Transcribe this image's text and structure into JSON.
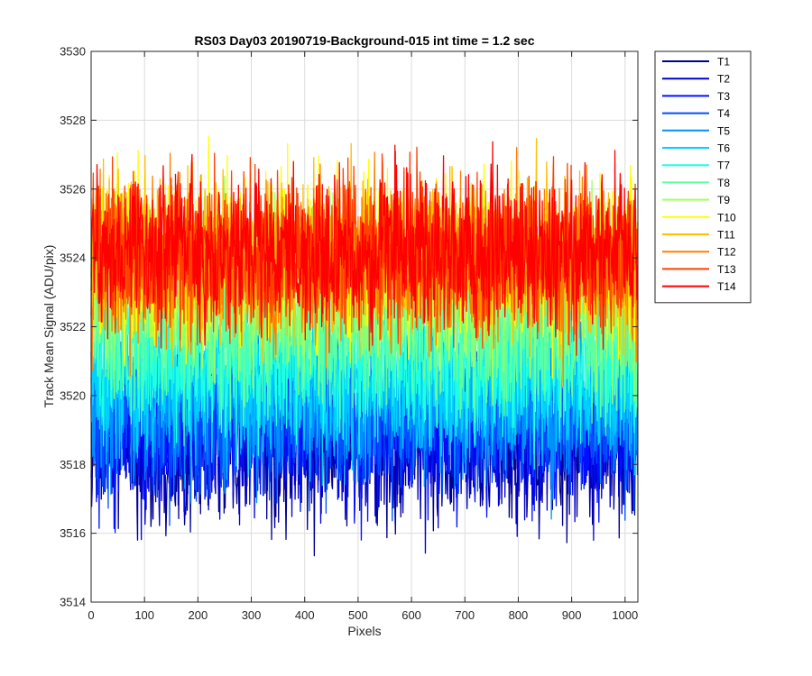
{
  "chart_data": {
    "type": "line",
    "title": "RS03 Day03 20190719-Background-015 int time = 1.2 sec",
    "xlabel": "Pixels",
    "ylabel": "Track Mean Signal (ADU/pix)",
    "xlim": [
      0,
      1024
    ],
    "ylim": [
      3514,
      3530
    ],
    "xticks": [
      0,
      100,
      200,
      300,
      400,
      500,
      600,
      700,
      800,
      900,
      1000
    ],
    "yticks": [
      3514,
      3516,
      3518,
      3520,
      3522,
      3524,
      3526,
      3528,
      3530
    ],
    "grid": true,
    "legend_position": "outside-top-right",
    "n_points_per_series": 1024,
    "series": [
      {
        "name": "T1",
        "color": "#00008f",
        "mean": 3518.6,
        "noise": 2.4
      },
      {
        "name": "T2",
        "color": "#0000d0",
        "mean": 3518.9,
        "noise": 2.4
      },
      {
        "name": "T3",
        "color": "#0010ff",
        "mean": 3519.2,
        "noise": 2.3
      },
      {
        "name": "T4",
        "color": "#0050ff",
        "mean": 3519.5,
        "noise": 2.3
      },
      {
        "name": "T5",
        "color": "#0090ff",
        "mean": 3519.9,
        "noise": 2.3
      },
      {
        "name": "T6",
        "color": "#00d0ff",
        "mean": 3520.4,
        "noise": 2.3
      },
      {
        "name": "T7",
        "color": "#20ffdf",
        "mean": 3521.2,
        "noise": 2.4
      },
      {
        "name": "T8",
        "color": "#60ff9f",
        "mean": 3522.2,
        "noise": 2.5
      },
      {
        "name": "T9",
        "color": "#a0ff60",
        "mean": 3523.2,
        "noise": 2.5
      },
      {
        "name": "T10",
        "color": "#ffff00",
        "mean": 3523.9,
        "noise": 2.4
      },
      {
        "name": "T11",
        "color": "#ffbf00",
        "mean": 3524.0,
        "noise": 2.3
      },
      {
        "name": "T12",
        "color": "#ff7f00",
        "mean": 3523.9,
        "noise": 2.3
      },
      {
        "name": "T13",
        "color": "#ff4000",
        "mean": 3524.1,
        "noise": 2.3
      },
      {
        "name": "T14",
        "color": "#ff0000",
        "mean": 3524.2,
        "noise": 2.3
      }
    ]
  }
}
